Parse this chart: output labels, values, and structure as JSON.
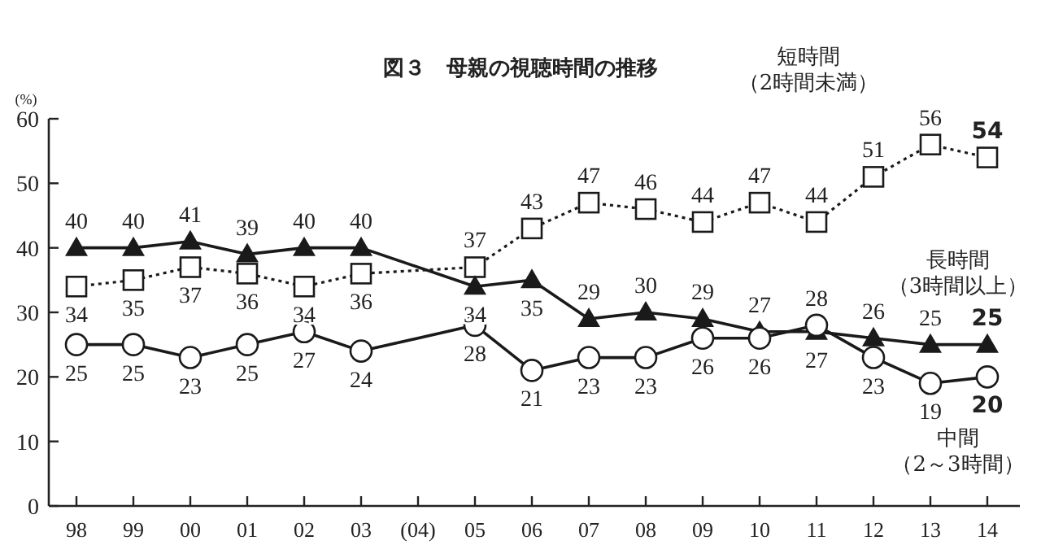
{
  "chart_data": {
    "type": "line",
    "title": "図３　母親の視聴時間の推移",
    "ylabel": "(%)",
    "categories": [
      "98",
      "99",
      "00",
      "01",
      "02",
      "03",
      "(04)",
      "05",
      "06",
      "07",
      "08",
      "09",
      "10",
      "11",
      "12",
      "13",
      "14"
    ],
    "series": [
      {
        "name": "短時間（2時間未満）",
        "color": "#1a1a1a",
        "marker": "square",
        "line_style": "dotted",
        "values": [
          34,
          35,
          37,
          36,
          34,
          36,
          null,
          37,
          43,
          47,
          46,
          44,
          47,
          44,
          51,
          56,
          54
        ]
      },
      {
        "name": "長時間（3時間以上）",
        "color": "#1a1a1a",
        "marker": "triangle",
        "line_style": "solid",
        "values": [
          40,
          40,
          41,
          39,
          40,
          40,
          null,
          34,
          35,
          29,
          30,
          29,
          27,
          27,
          26,
          25,
          25
        ]
      },
      {
        "name": "中間（2～3時間）",
        "color": "#1a1a1a",
        "marker": "circle",
        "line_style": "solid",
        "values": [
          25,
          25,
          23,
          25,
          27,
          24,
          null,
          28,
          21,
          23,
          23,
          26,
          26,
          28,
          23,
          19,
          20
        ]
      }
    ],
    "ylim": [
      0,
      60
    ],
    "yticks": [
      0,
      10,
      20,
      30,
      40,
      50,
      60
    ],
    "data_labels": true,
    "grid": false
  }
}
